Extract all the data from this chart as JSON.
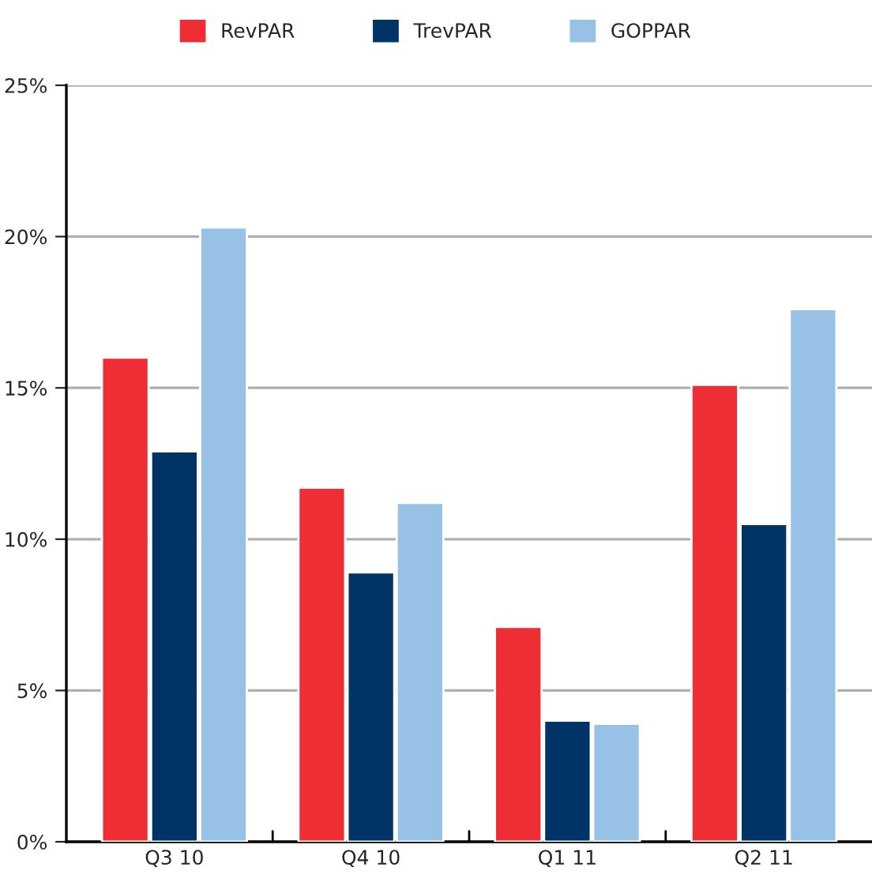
{
  "chart_data": {
    "type": "bar",
    "categories": [
      "Q3 10",
      "Q4 10",
      "Q1 11",
      "Q2 11"
    ],
    "series": [
      {
        "name": "RevPAR",
        "color": "#ee2e34",
        "values": [
          16.0,
          11.7,
          7.1,
          15.1
        ]
      },
      {
        "name": "TrevPAR",
        "color": "#003466",
        "values": [
          12.9,
          8.9,
          4.0,
          10.5
        ]
      },
      {
        "name": "GOPPAR",
        "color": "#98c1e6",
        "values": [
          20.3,
          11.2,
          3.9,
          17.6
        ]
      }
    ],
    "ylim": [
      0,
      25
    ],
    "yticks": [
      {
        "value": 0,
        "label": "0%"
      },
      {
        "value": 5,
        "label": "5%"
      },
      {
        "value": 10,
        "label": "10%"
      },
      {
        "value": 15,
        "label": "15%"
      },
      {
        "value": 20,
        "label": "20%"
      },
      {
        "value": 25,
        "label": "25%"
      }
    ],
    "grid": "y",
    "legend": "top"
  }
}
